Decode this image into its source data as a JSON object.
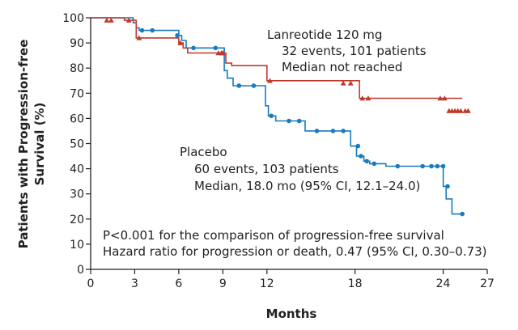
{
  "chart_data": {
    "type": "line",
    "subtype": "kaplan-meier",
    "title": "",
    "xlabel": "Months",
    "ylabel": "Patients with Progression-free Survival (%)",
    "ylabel_lines": [
      "Patients with Progression-free",
      "Survival (%)"
    ],
    "xlim": [
      0,
      27
    ],
    "ylim": [
      0,
      100
    ],
    "xticks": [
      0,
      3,
      6,
      9,
      12,
      18,
      24,
      27
    ],
    "yticks": [
      0,
      10,
      20,
      30,
      40,
      50,
      60,
      70,
      80,
      90,
      100
    ],
    "grid": false,
    "colors": {
      "lanreotide": "#c0392b",
      "placebo": "#1a7abf",
      "axis": "#231f20"
    },
    "series": [
      {
        "name": "Lanreotide 120 mg",
        "color": "#c0392b",
        "marker": "triangle",
        "x": [
          0,
          2.3,
          2.3,
          3.1,
          3.1,
          6.0,
          6.0,
          6.3,
          6.3,
          6.6,
          6.6,
          9.2,
          9.2,
          9.6,
          9.6,
          12.0,
          12.0,
          18.3,
          18.3,
          25.3
        ],
        "y": [
          100,
          100,
          99,
          99,
          92,
          92,
          90,
          90,
          88,
          88,
          86,
          86,
          82,
          82,
          81,
          81,
          75,
          75,
          68,
          68
        ],
        "censor_x": [
          1.1,
          1.4,
          2.6,
          3.3,
          6.1,
          8.7,
          8.9,
          9.0,
          12.2,
          17.2,
          17.7,
          18.5,
          18.9,
          23.8,
          24.1,
          24.4,
          24.6,
          24.8,
          25.0,
          25.2,
          25.5,
          25.7
        ],
        "censor_y": [
          99,
          99,
          99,
          92,
          90,
          86,
          86,
          86,
          75,
          74,
          74,
          68,
          68,
          68,
          68,
          63,
          63,
          63,
          63,
          63,
          63,
          63
        ],
        "annotation": [
          "Lanreotide 120 mg",
          "32 events, 101 patients",
          "Median not reached"
        ]
      },
      {
        "name": "Placebo",
        "color": "#1a7abf",
        "marker": "circle",
        "x": [
          0,
          2.9,
          2.9,
          3.1,
          3.1,
          3.3,
          3.3,
          6.0,
          6.0,
          6.2,
          6.2,
          6.5,
          6.5,
          9.1,
          9.1,
          9.3,
          9.3,
          9.7,
          9.7,
          11.9,
          11.9,
          12.1,
          12.1,
          12.6,
          12.6,
          14.6,
          14.6,
          17.7,
          17.7,
          18.1,
          18.1,
          18.6,
          18.6,
          19.0,
          19.0,
          20.1,
          20.1,
          24.0,
          24.0,
          24.2,
          24.2,
          24.6,
          24.6,
          25.3
        ],
        "y": [
          100,
          100,
          98,
          98,
          96,
          96,
          95,
          95,
          93,
          93,
          91,
          91,
          88,
          88,
          79,
          79,
          76,
          76,
          73,
          73,
          65,
          65,
          61,
          61,
          59,
          59,
          55,
          55,
          49,
          49,
          45,
          45,
          43,
          43,
          42,
          42,
          41,
          41,
          33,
          33,
          28,
          28,
          22,
          22
        ],
        "censor_x": [
          3.5,
          4.2,
          5.9,
          7.0,
          8.5,
          10.1,
          11.1,
          12.3,
          13.5,
          14.2,
          15.4,
          16.5,
          17.2,
          18.2,
          18.4,
          18.8,
          19.3,
          20.9,
          22.6,
          23.2,
          23.6,
          24.0,
          24.3,
          25.3
        ],
        "censor_y": [
          95,
          95,
          93,
          88,
          88,
          73,
          73,
          61,
          59,
          59,
          55,
          55,
          55,
          49,
          45,
          43,
          42,
          41,
          41,
          41,
          41,
          41,
          33,
          22
        ],
        "annotation": [
          "Placebo",
          "60 events, 103 patients",
          "Median, 18.0 mo (95% CI, 12.1–24.0)"
        ]
      }
    ],
    "footnotes": [
      "P<0.001 for the comparison of progression-free survival",
      "Hazard ratio for progression or death, 0.47 (95% CI, 0.30–0.73)"
    ]
  }
}
